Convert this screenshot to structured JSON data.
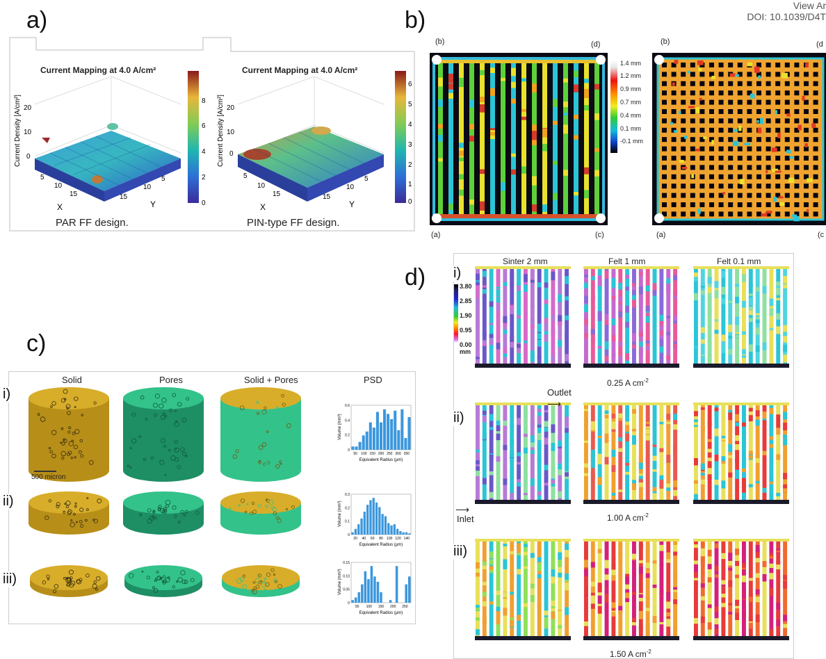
{
  "header": {
    "line1": "View Ar",
    "line2": "DOI: 10.1039/D4T"
  },
  "panels": {
    "a": {
      "letter": "a)",
      "plots": [
        {
          "title": "Current Mapping at 4.0 A/cm²",
          "zlabel": "Current Density [A/cm²]",
          "zticks": [
            "20",
            "10",
            "0"
          ],
          "xlabel": "X",
          "ylabel": "Y",
          "xticks": [
            "5",
            "10",
            "15"
          ],
          "yticks": [
            "15",
            "10",
            "5"
          ],
          "colorbar_ticks": [
            "8",
            "6",
            "4",
            "2",
            "0"
          ],
          "caption": "PAR FF design."
        },
        {
          "title": "Current Mapping at 4.0 A/cm²",
          "zlabel": "Current Density [A/cm²]",
          "zticks": [
            "20",
            "10",
            "0"
          ],
          "xlabel": "X",
          "ylabel": "Y",
          "xticks": [
            "5",
            "10",
            "15"
          ],
          "yticks": [
            "15",
            "10",
            "5"
          ],
          "colorbar_ticks": [
            "6",
            "5",
            "4",
            "3",
            "2",
            "1",
            "0"
          ],
          "caption": "PIN-type FF design."
        }
      ]
    },
    "b": {
      "letter": "b)",
      "corner_labels": {
        "tl": "(b)",
        "tr": "(d)",
        "bl": "(a)",
        "br": "(c)"
      },
      "corner_labels_right": {
        "tl": "(b)",
        "tr": "(d",
        "bl": "(a)",
        "br": "(c"
      },
      "legend": [
        "1.4 mm",
        "1.2 mm",
        "0.9 mm",
        "0.7 mm",
        "0.4 mm",
        "0.1 mm",
        "-0.1 mm"
      ]
    },
    "c": {
      "letter": "c)",
      "columns": [
        "Solid",
        "Pores",
        "Solid + Pores",
        "PSD"
      ],
      "rows": [
        "i)",
        "ii)",
        "iii)"
      ],
      "scale_bar": "500 micron",
      "psd": [
        {
          "ylabel": "Volume (mm³)",
          "xlabel": "Equivalent Radius (μm)",
          "xticks": [
            "50",
            "100",
            "150",
            "200",
            "250",
            "300",
            "350"
          ],
          "yticks": [
            "0.6",
            "0.4",
            "0.2",
            "0"
          ],
          "values": [
            0.05,
            0.05,
            0.12,
            0.22,
            0.28,
            0.42,
            0.34,
            0.58,
            0.42,
            0.62,
            0.55,
            0.47,
            0.6,
            0.3,
            0.62,
            0.18,
            0.5
          ]
        },
        {
          "ylabel": "Volume (mm³)",
          "xlabel": "Equivalent Radius (μm)",
          "xticks": [
            "20",
            "40",
            "60",
            "80",
            "100",
            "120",
            "140"
          ],
          "yticks": [
            "0.3",
            "0.2",
            "0.1",
            "0"
          ],
          "values": [
            0.02,
            0.05,
            0.09,
            0.14,
            0.2,
            0.26,
            0.3,
            0.32,
            0.28,
            0.24,
            0.18,
            0.16,
            0.1,
            0.08,
            0.09,
            0.05,
            0.03,
            0.02,
            0.02,
            0.01
          ]
        },
        {
          "ylabel": "Volume (mm³)",
          "xlabel": "Equivalent Radius (μm)",
          "xticks": [
            "50",
            "100",
            "150",
            "200",
            "250"
          ],
          "yticks": [
            "0.15",
            "0.10",
            "0.05",
            "0"
          ],
          "values": [
            0.01,
            0.02,
            0.04,
            0.07,
            0.12,
            0.09,
            0.14,
            0.1,
            0.08,
            0.04,
            0,
            0,
            0.01,
            0,
            0.14,
            0,
            0,
            0.07,
            0.1
          ]
        }
      ]
    },
    "d": {
      "letter": "d)",
      "columns": [
        "Sinter 2 mm",
        "Felt 1 mm",
        "Felt 0.1 mm"
      ],
      "rows": [
        "i)",
        "ii)",
        "iii)"
      ],
      "currents": [
        "0.25 A cm",
        "1.00 A cm",
        "1.50 A cm"
      ],
      "current_exp": "-2",
      "outlet": "Outlet",
      "inlet": "Inlet",
      "legend_values": [
        "3.80",
        "2.85",
        "1.90",
        "0.95",
        "0.00"
      ],
      "legend_unit": "mm"
    }
  }
}
